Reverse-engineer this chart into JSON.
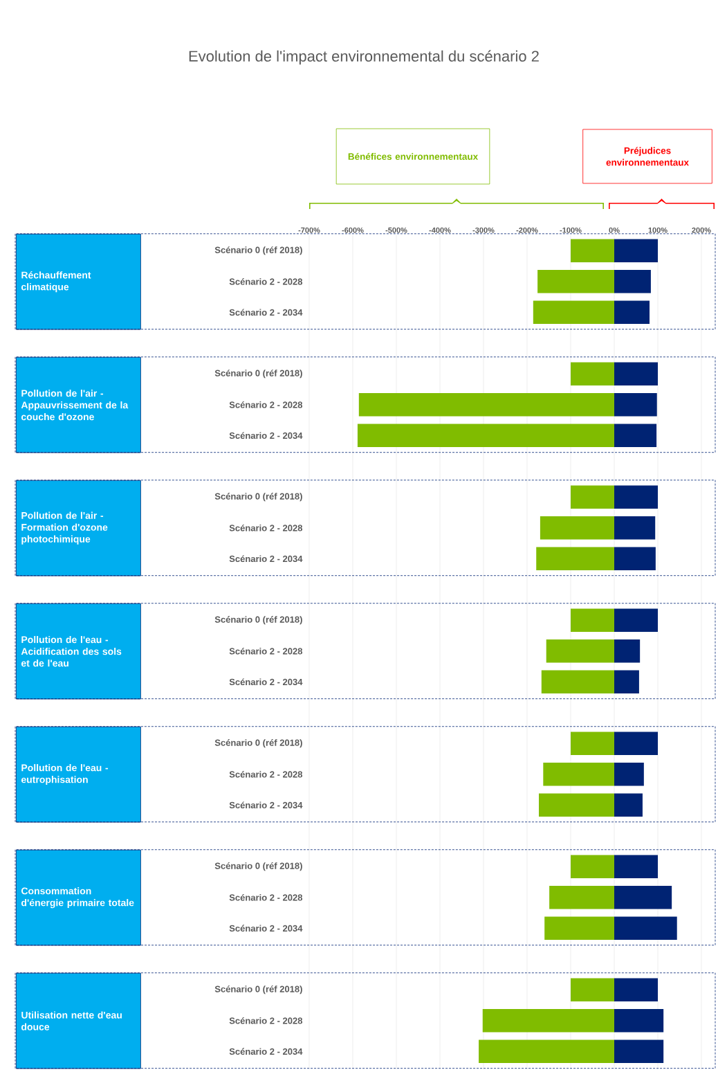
{
  "chart_data": {
    "type": "bar",
    "orientation": "horizontal",
    "title": "Evolution de l'impact environnemental du scénario 2",
    "categories": [
      "Scénario 0 (réf 2018)",
      "Scénario 2 - 2028",
      "Scénario 2 - 2034",
      "Scénario 0 (réf 2018)",
      "Scénario 2 - 2028",
      "Scénario 2 - 2034",
      "Scénario 0 (réf 2018)",
      "Scénario 2 - 2028",
      "Scénario 2 - 2034",
      "Scénario 0 (réf 2018)",
      "Scénario 2 - 2028",
      "Scénario 2 - 2034",
      "Scénario 0 (réf 2018)",
      "Scénario 2 - 2028",
      "Scénario 2 - 2034",
      "Scénario 0 (réf 2018)",
      "Scénario 2 - 2028",
      "Scénario 2 - 2034",
      "Scénario 0 (réf 2018)",
      "Scénario 2 - 2028",
      "Scénario 2 - 2034"
    ],
    "series": [
      {
        "color": "#80bc00",
        "values": [
          -100,
          -176,
          -186,
          -100,
          -586,
          -589,
          -100,
          -170,
          -179,
          -100,
          -156,
          -167,
          -100,
          -163,
          -173,
          -100,
          -149,
          -160,
          -100,
          -302,
          -311
        ]
      },
      {
        "color": "#002373",
        "values": [
          100,
          84,
          81,
          100,
          98,
          97,
          100,
          94,
          95,
          100,
          59,
          57,
          100,
          68,
          65,
          100,
          132,
          144,
          100,
          113,
          113
        ]
      }
    ],
    "xlim": [
      -700,
      200
    ],
    "stacked": true,
    "xticks": [
      {
        "value": -700,
        "label": "-700%"
      },
      {
        "value": -600,
        "label": "-600%"
      },
      {
        "value": -500,
        "label": "-500%"
      },
      {
        "value": -400,
        "label": "-400%"
      },
      {
        "value": -300,
        "label": "-300%"
      },
      {
        "value": -200,
        "label": "-200%"
      },
      {
        "value": -100,
        "label": "-100%"
      },
      {
        "value": 0,
        "label": "0%"
      },
      {
        "value": 100,
        "label": "100%"
      },
      {
        "value": 200,
        "label": "200%"
      }
    ],
    "grid": "x",
    "annotations": [
      "Bénéfices environnementaux",
      "Préjudices environnementaux",
      "Réchauffement climatique",
      "Pollution de l'air - Appauvrissement de la couche d'ozone",
      "Pollution de l'air - Formation d'ozone photochimique",
      "Pollution de l'eau - Acidification des sols et de l'eau",
      "Pollution de l'eau - eutrophisation",
      "Consommation d'énergie primaire totale",
      "Utilisation nette d'eau douce"
    ]
  }
}
